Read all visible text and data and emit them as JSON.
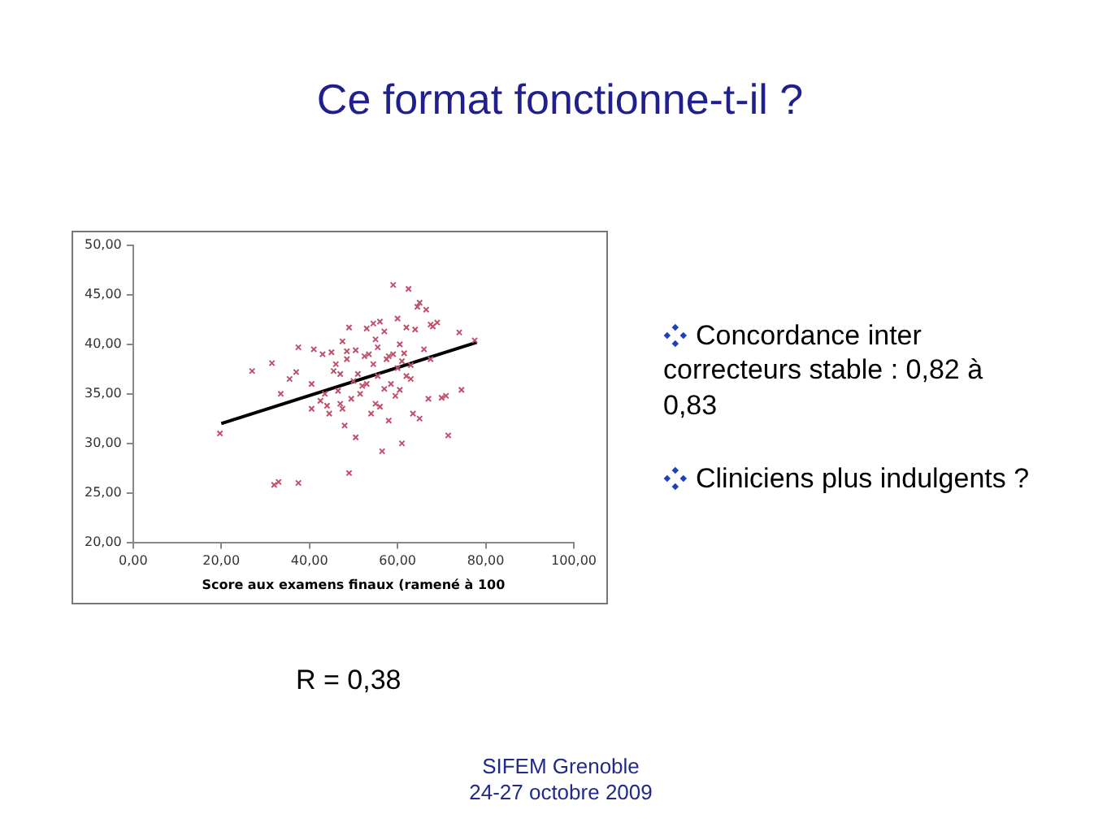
{
  "chart_data": {
    "type": "scatter",
    "title": "Ce format fonctionne-t-il ?",
    "xlabel": "Score aux examens finaux (ramené à 100",
    "annotations": [
      "Concordance inter correcteurs stable : 0,82 à 0,83",
      "Cliniciens plus indulgents ?",
      "R = 0,38",
      "SIFEM Grenoble",
      "24-27 octobre 2009"
    ],
    "series": [
      {
        "marker": "cross",
        "color": "#c0506a",
        "x": [
          19.7,
          27,
          31.5,
          32,
          33,
          37.5,
          33.5,
          35.5,
          37,
          37.5,
          40.5,
          41,
          40.5,
          42.5,
          43,
          43.5,
          44.5,
          44,
          45,
          45.5,
          46,
          46.5,
          47,
          47.5,
          47,
          47.5,
          48,
          48.5,
          48.5,
          49,
          49,
          49.5,
          50,
          50.5,
          50.5,
          51,
          51.5,
          52,
          52.5,
          53,
          53,
          53.5,
          54,
          54.5,
          54.5,
          55,
          55,
          55.5,
          55.5,
          56,
          56,
          56.5,
          57,
          57,
          57.5,
          58,
          58,
          58.5,
          59,
          59,
          59.5,
          60,
          60,
          60.5,
          60.5,
          61,
          61,
          61.5,
          62,
          62,
          62.5,
          63,
          63,
          63.5,
          64,
          64.5,
          65,
          65,
          66,
          66.5,
          67,
          67.5,
          67.5,
          68,
          69,
          70,
          71,
          71.5,
          74,
          74.5,
          77.5
        ],
        "values": [
          31.0,
          37.3,
          38.1,
          25.8,
          26.1,
          26.0,
          35.0,
          36.5,
          37.2,
          39.7,
          36.0,
          39.5,
          33.5,
          34.3,
          39.0,
          35.0,
          33.0,
          33.8,
          39.2,
          37.3,
          38.0,
          35.3,
          37.0,
          33.5,
          34.0,
          40.3,
          31.8,
          38.5,
          39.3,
          41.7,
          27.0,
          34.5,
          36.3,
          39.4,
          30.6,
          37.0,
          35.0,
          35.8,
          38.8,
          41.6,
          36.0,
          39.0,
          33.0,
          38.0,
          42.1,
          40.5,
          34.0,
          36.8,
          39.7,
          42.3,
          33.7,
          29.2,
          35.5,
          41.3,
          38.5,
          32.3,
          38.8,
          36.0,
          46.0,
          39.0,
          34.8,
          42.6,
          37.6,
          35.4,
          40.0,
          30.0,
          38.3,
          39.1,
          41.7,
          36.8,
          45.6,
          37.9,
          36.5,
          33.0,
          41.5,
          43.8,
          44.2,
          32.5,
          39.5,
          43.5,
          34.5,
          42.0,
          38.5,
          41.8,
          42.2,
          34.6,
          34.8,
          30.8,
          41.2,
          35.4,
          40.4
        ]
      },
      {
        "type": "line",
        "marker": "none",
        "color": "#000000",
        "x": [
          20,
          78
        ],
        "values": [
          32.0,
          40.2
        ]
      }
    ],
    "xlim": [
      0,
      100
    ],
    "xticks": [
      {
        "value": 0,
        "label": "0,00"
      },
      {
        "value": 20,
        "label": "20,00"
      },
      {
        "value": 40,
        "label": "40,00"
      },
      {
        "value": 60,
        "label": "60,00"
      },
      {
        "value": 80,
        "label": "80,00"
      },
      {
        "value": 100,
        "label": "100,00"
      }
    ],
    "ylim": [
      20,
      50
    ],
    "yticks": [
      {
        "value": 20,
        "label": "20,00"
      },
      {
        "value": 25,
        "label": "25,00"
      },
      {
        "value": 30,
        "label": "30,00"
      },
      {
        "value": 35,
        "label": "35,00"
      },
      {
        "value": 40,
        "label": "40,00"
      },
      {
        "value": 45,
        "label": "45,00"
      },
      {
        "value": 50,
        "label": "50,00"
      }
    ],
    "grid": false,
    "legend": false
  }
}
